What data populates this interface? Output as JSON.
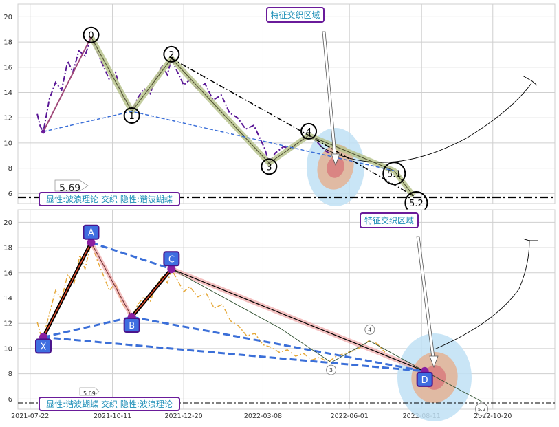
{
  "colors": {
    "grid": "#cfcfcf",
    "price_top": "#5a1796",
    "price_bottom": "#e6a93a",
    "baseline": "#000000",
    "dashed_link": "#3b6fd8",
    "label_text": "#1f8fb8",
    "label_border": "#6a1b9a",
    "point_box_fill": "#3f6ee0",
    "point_box_border": "#4a148c",
    "halo_outer": "#bfe0f5",
    "halo_mid": "#e2b59a",
    "halo_inner": "#d98080"
  },
  "chart_data": [
    {
      "type": "line",
      "panel": "top",
      "yticks": [
        6,
        8,
        10,
        12,
        14,
        16,
        18,
        20
      ],
      "ylim": [
        5.2,
        21
      ],
      "xlim": [
        "2021-07-10",
        "2022-12-20"
      ],
      "grid": true,
      "baseline_value": 5.69,
      "baseline_label": "5.69",
      "annotation": "特征交织区域",
      "caption": "显性:波浪理论 交织 隐性:谐波蝴蝶",
      "wave_points": [
        {
          "label": "0",
          "x": "2021-09-20",
          "y": 18.4
        },
        {
          "label": "1",
          "x": "2021-10-30",
          "y": 12.5
        },
        {
          "label": "2",
          "x": "2021-12-08",
          "y": 16.7
        },
        {
          "label": "3",
          "x": "2022-03-14",
          "y": 8.4
        },
        {
          "label": "4",
          "x": "2022-04-22",
          "y": 10.6
        },
        {
          "label": "5.1",
          "x": "2022-07-15",
          "y": 7.8
        },
        {
          "label": "5.2",
          "x": "2022-08-03",
          "y": 5.8
        }
      ],
      "start_point": {
        "x": "2021-08-04",
        "y": 10.9
      },
      "price_series": [
        [
          "2021-07-29",
          12.3
        ],
        [
          "2021-08-01",
          11.3
        ],
        [
          "2021-08-04",
          10.9
        ],
        [
          "2021-08-10",
          13.5
        ],
        [
          "2021-08-16",
          14.8
        ],
        [
          "2021-08-22",
          14.2
        ],
        [
          "2021-08-28",
          16.5
        ],
        [
          "2021-09-02",
          15.6
        ],
        [
          "2021-09-08",
          17.3
        ],
        [
          "2021-09-14",
          16.9
        ],
        [
          "2021-09-20",
          18.4
        ],
        [
          "2021-09-26",
          17.2
        ],
        [
          "2021-10-02",
          16.1
        ],
        [
          "2021-10-08",
          15.0
        ],
        [
          "2021-10-14",
          15.6
        ],
        [
          "2021-10-20",
          13.8
        ],
        [
          "2021-10-26",
          13.2
        ],
        [
          "2021-10-30",
          12.5
        ],
        [
          "2021-11-05",
          13.6
        ],
        [
          "2021-11-11",
          14.3
        ],
        [
          "2021-11-17",
          13.9
        ],
        [
          "2021-11-23",
          15.2
        ],
        [
          "2021-11-29",
          16.1
        ],
        [
          "2021-12-04",
          15.4
        ],
        [
          "2021-12-08",
          16.7
        ],
        [
          "2021-12-14",
          15.6
        ],
        [
          "2021-12-20",
          14.6
        ],
        [
          "2021-12-26",
          15.0
        ],
        [
          "2022-01-02",
          14.3
        ],
        [
          "2022-01-10",
          14.7
        ],
        [
          "2022-01-18",
          13.4
        ],
        [
          "2022-01-26",
          13.8
        ],
        [
          "2022-02-03",
          12.4
        ],
        [
          "2022-02-11",
          12.0
        ],
        [
          "2022-02-19",
          11.1
        ],
        [
          "2022-02-27",
          11.4
        ],
        [
          "2022-03-06",
          10.2
        ],
        [
          "2022-03-10",
          9.5
        ],
        [
          "2022-03-14",
          8.4
        ],
        [
          "2022-03-20",
          9.2
        ],
        [
          "2022-03-28",
          9.7
        ],
        [
          "2022-04-05",
          9.5
        ],
        [
          "2022-04-13",
          10.1
        ],
        [
          "2022-04-22",
          10.6
        ],
        [
          "2022-04-30",
          10.1
        ],
        [
          "2022-05-08",
          9.4
        ],
        [
          "2022-05-16",
          9.0
        ]
      ]
    },
    {
      "type": "line",
      "panel": "bottom",
      "yticks": [
        6,
        8,
        10,
        12,
        14,
        16,
        18,
        20
      ],
      "ylim": [
        5.2,
        21
      ],
      "xlim": [
        "2021-07-10",
        "2022-12-20"
      ],
      "xticks": [
        "2021-07-22",
        "2021-10-11",
        "2021-12-20",
        "2022-03-08",
        "2022-06-01",
        "2022-08-11",
        "2022-10-20"
      ],
      "grid": true,
      "baseline_value": 5.69,
      "baseline_label": "5.69",
      "annotation": "特征交织区域",
      "caption": "显性:谐波蝴蝶 交织 隐性:波浪理论",
      "harmonic_points": [
        {
          "label": "X",
          "x": "2021-08-04",
          "y": 10.9
        },
        {
          "label": "A",
          "x": "2021-09-20",
          "y": 18.4
        },
        {
          "label": "B",
          "x": "2021-10-30",
          "y": 12.5
        },
        {
          "label": "C",
          "x": "2021-12-08",
          "y": 16.3
        },
        {
          "label": "D",
          "x": "2022-08-14",
          "y": 8.2
        }
      ],
      "wave_labels": [
        {
          "label": "3",
          "x": "2022-05-14",
          "y": 8.3
        },
        {
          "label": "4",
          "x": "2022-06-21",
          "y": 11.5
        },
        {
          "label": "5.2",
          "x": "2022-10-09",
          "y": 5.2
        }
      ],
      "price_series": [
        [
          "2021-07-29",
          12.1
        ],
        [
          "2021-08-01",
          11.2
        ],
        [
          "2021-08-04",
          10.9
        ],
        [
          "2021-08-10",
          12.8
        ],
        [
          "2021-08-16",
          14.6
        ],
        [
          "2021-08-22",
          13.9
        ],
        [
          "2021-08-28",
          15.9
        ],
        [
          "2021-09-03",
          15.1
        ],
        [
          "2021-09-09",
          17.4
        ],
        [
          "2021-09-14",
          16.3
        ],
        [
          "2021-09-20",
          18.4
        ],
        [
          "2021-09-26",
          17.0
        ],
        [
          "2021-10-02",
          15.8
        ],
        [
          "2021-10-08",
          14.6
        ],
        [
          "2021-10-14",
          15.2
        ],
        [
          "2021-10-20",
          13.6
        ],
        [
          "2021-10-26",
          13.0
        ],
        [
          "2021-10-30",
          12.5
        ],
        [
          "2021-11-05",
          13.5
        ],
        [
          "2021-11-11",
          14.1
        ],
        [
          "2021-11-17",
          13.7
        ],
        [
          "2021-11-23",
          15.0
        ],
        [
          "2021-11-29",
          15.7
        ],
        [
          "2021-12-04",
          15.2
        ],
        [
          "2021-12-08",
          16.3
        ],
        [
          "2021-12-14",
          15.4
        ],
        [
          "2021-12-20",
          14.5
        ],
        [
          "2021-12-26",
          14.9
        ],
        [
          "2022-01-03",
          14.1
        ],
        [
          "2022-01-11",
          14.4
        ],
        [
          "2022-01-19",
          13.2
        ],
        [
          "2022-01-27",
          13.5
        ],
        [
          "2022-02-04",
          12.2
        ],
        [
          "2022-02-12",
          11.8
        ],
        [
          "2022-02-20",
          11.0
        ],
        [
          "2022-02-28",
          11.2
        ],
        [
          "2022-03-08",
          10.3
        ],
        [
          "2022-03-16",
          10.1
        ],
        [
          "2022-03-24",
          9.7
        ],
        [
          "2022-04-01",
          9.9
        ],
        [
          "2022-04-09",
          9.4
        ],
        [
          "2022-04-17",
          9.6
        ],
        [
          "2022-04-25",
          9.1
        ],
        [
          "2022-05-03",
          9.3
        ],
        [
          "2022-05-11",
          8.9
        ],
        [
          "2022-05-19",
          9.4
        ],
        [
          "2022-05-27",
          9.6
        ],
        [
          "2022-06-04",
          9.8
        ],
        [
          "2022-06-12",
          10.1
        ],
        [
          "2022-06-20",
          10.6
        ],
        [
          "2022-06-28",
          10.4
        ],
        [
          "2022-07-06",
          9.7
        ]
      ]
    }
  ]
}
